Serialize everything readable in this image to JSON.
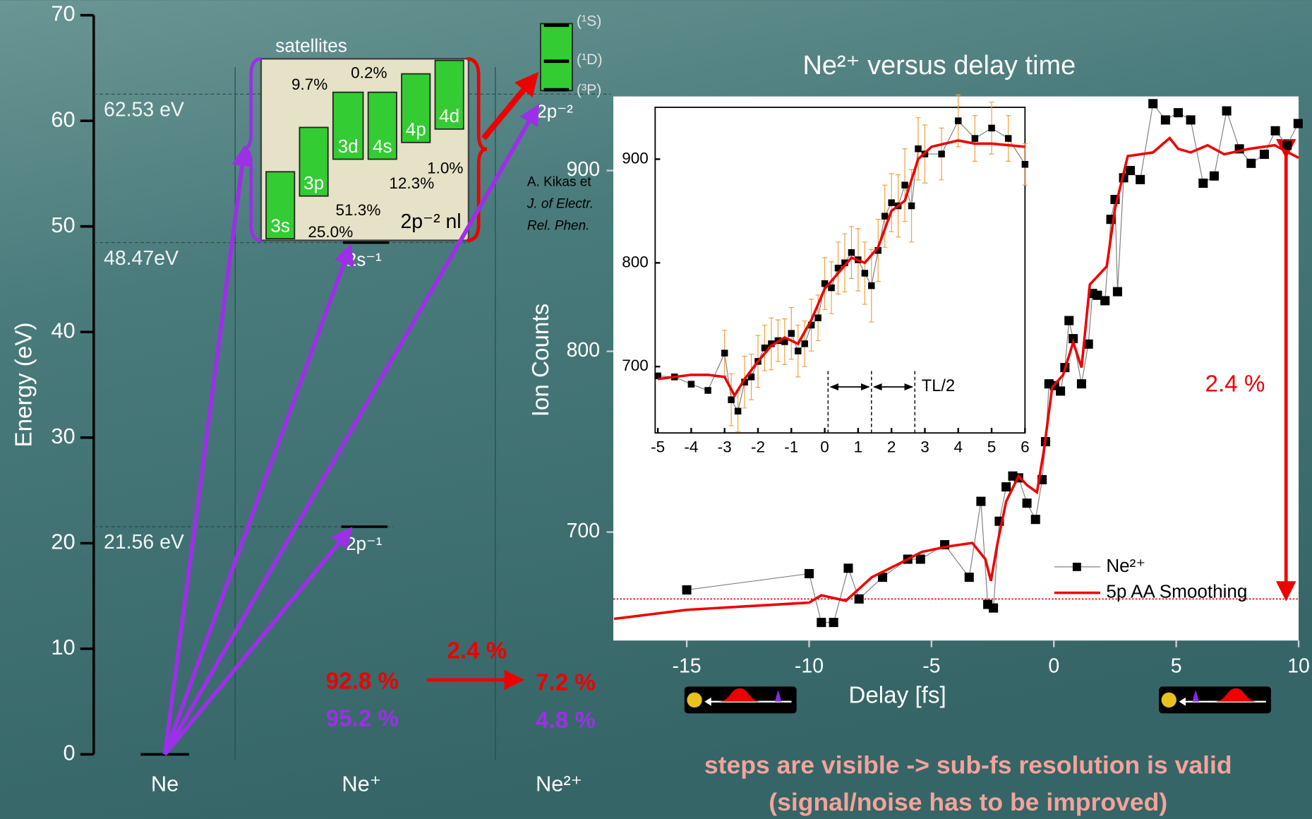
{
  "chart_data": [
    {
      "type": "levels",
      "ylabel": "Energy (eV)",
      "ylim": [
        0,
        70
      ],
      "yticks": [
        0,
        10,
        20,
        30,
        40,
        50,
        60,
        70
      ],
      "categories": [
        "Ne",
        "Ne⁺",
        "Ne²⁺"
      ],
      "levels": [
        {
          "value": 21.56,
          "label": "21.56 eV",
          "state": "2p⁻¹"
        },
        {
          "value": 48.47,
          "label": "48.47eV",
          "state": "2s⁻¹"
        },
        {
          "value": 62.53,
          "label": "62.53 eV",
          "state": "2p⁻²"
        }
      ],
      "satellites_title": "satellites",
      "satellites_config": "2p⁻² nl",
      "satellites": [
        {
          "name": "3s",
          "label": "25.0%"
        },
        {
          "name": "3p",
          "label": "51.3%"
        },
        {
          "name": "3d",
          "label": "9.7%"
        },
        {
          "name": "4s",
          "label": "0.2%"
        },
        {
          "name": "4p",
          "label": "12.3%"
        },
        {
          "name": "4d",
          "label": "1.0%"
        }
      ],
      "terms": [
        "(¹S)",
        "(¹D)",
        "(³P)"
      ],
      "annotations": [
        "92.8 %",
        "95.2 %",
        "2.4 %",
        "7.2 %",
        "4.8 %"
      ]
    },
    {
      "type": "line",
      "title": "Ne²⁺ versus delay time",
      "xlabel": "Delay [fs]",
      "ylabel": "Ion Counts",
      "xlim": [
        -18,
        10
      ],
      "xticks": [
        -15,
        -10,
        -5,
        0,
        5,
        10
      ],
      "ylim": [
        640,
        941
      ],
      "yticks": [
        700,
        800,
        900
      ],
      "baseline": 663,
      "annotation": "2.4 %",
      "reference": [
        "A. Kikas et",
        "J. of Electr.",
        "Rel. Phen."
      ],
      "legend": "lower right",
      "series": [
        {
          "name": "Ne²⁺",
          "color": "#000000",
          "line_color": "#808080",
          "x": [
            -15.0,
            -10.0,
            -9.5,
            -9.0,
            -8.4,
            -7.96,
            -7.0,
            -5.97,
            -5.45,
            -4.46,
            -3.46,
            -2.98,
            -2.7,
            -2.47,
            -2.23,
            -1.95,
            -1.68,
            -1.44,
            -1.1,
            -0.75,
            -0.48,
            -0.34,
            -0.2,
            0.03,
            0.27,
            0.45,
            0.62,
            0.79,
            1.13,
            1.41,
            1.58,
            1.78,
            2.09,
            2.33,
            2.5,
            2.6,
            2.85,
            3.12,
            3.53,
            4.05,
            4.56,
            5.08,
            5.59,
            6.1,
            6.55,
            7.06,
            7.58,
            8.06,
            8.6,
            9.05,
            9.53,
            9.98
          ],
          "values": [
            668,
            677,
            650,
            650,
            680,
            663,
            675,
            685,
            685,
            693,
            675,
            717,
            660,
            658,
            706,
            725,
            731,
            730,
            716,
            707,
            729,
            750,
            782,
            781,
            778,
            791,
            817,
            807,
            782,
            804,
            832,
            831,
            828,
            873,
            884,
            833,
            896,
            900,
            895,
            937,
            928,
            932,
            928,
            893,
            897,
            933,
            912,
            904,
            909,
            922,
            914,
            926
          ]
        },
        {
          "name": "5p AA Smoothing",
          "color": "#ee0000",
          "x": [
            -17.97,
            -15,
            -10,
            -9.5,
            -8.5,
            -7.44,
            -6.4,
            -5.4,
            -4.36,
            -3.33,
            -2.8,
            -2.57,
            -2.3,
            -1.95,
            -1.44,
            -1.1,
            -0.69,
            -0.41,
            -0.07,
            0.38,
            0.79,
            1.13,
            1.47,
            1.82,
            2.16,
            2.5,
            3.02,
            4.05,
            4.73,
            5.08,
            5.59,
            6.28,
            6.96,
            7.99,
            9.02,
            10.0
          ],
          "values": [
            652,
            657,
            661,
            665,
            662,
            675,
            682,
            689,
            692,
            694,
            685,
            673,
            694,
            717,
            731,
            726,
            722,
            745,
            780,
            787,
            805,
            791,
            837,
            842,
            847,
            879,
            908,
            910,
            918,
            912,
            910,
            914,
            909,
            912,
            914,
            907
          ]
        }
      ]
    },
    {
      "type": "line",
      "xlim": [
        -5.08,
        6
      ],
      "xticks": [
        -5,
        -4,
        -3,
        -2,
        -1,
        0,
        1,
        2,
        3,
        4,
        5,
        6
      ],
      "ylim": [
        636,
        950
      ],
      "yticks": [
        700,
        800,
        900
      ],
      "markers": [
        0.1,
        1.4,
        2.7
      ],
      "annotation": "TL/2",
      "series": [
        {
          "color": "#000000",
          "line_color": "#808080",
          "error_color": "#f0a040",
          "x": [
            -5.0,
            -4.5,
            -4.0,
            -3.5,
            -3.0,
            -2.8,
            -2.6,
            -2.4,
            -2.2,
            -2.0,
            -1.8,
            -1.6,
            -1.4,
            -1.2,
            -1.0,
            -0.8,
            -0.6,
            -0.4,
            -0.2,
            0.0,
            0.2,
            0.4,
            0.6,
            0.8,
            1.0,
            1.2,
            1.4,
            1.6,
            1.8,
            2.0,
            2.2,
            2.4,
            2.6,
            2.8,
            3.0,
            3.5,
            4.0,
            4.5,
            5.0,
            5.5,
            6.0
          ],
          "values": [
            691,
            690,
            683,
            677,
            713,
            668,
            657,
            685,
            690,
            705,
            718,
            722,
            725,
            724,
            732,
            715,
            722,
            740,
            747,
            780,
            776,
            795,
            800,
            810,
            803,
            790,
            778,
            812,
            845,
            858,
            855,
            875,
            855,
            910,
            905,
            905,
            937,
            920,
            930,
            920,
            895
          ],
          "errors": [
            null,
            null,
            null,
            null,
            22,
            25,
            20,
            25,
            22,
            25,
            22,
            25,
            20,
            22,
            25,
            25,
            22,
            25,
            22,
            25,
            25,
            25,
            28,
            25,
            30,
            30,
            35,
            30,
            30,
            28,
            30,
            35,
            35,
            30,
            28,
            25,
            25,
            22,
            25,
            22,
            20
          ]
        },
        {
          "color": "#ee0000",
          "x": [
            -5,
            -4,
            -3.5,
            -3.0,
            -2.7,
            -2.4,
            -2.0,
            -1.6,
            -1.2,
            -0.8,
            -0.4,
            0,
            0.4,
            0.8,
            1.2,
            1.6,
            2.0,
            2.4,
            2.8,
            3.2,
            4,
            4.5,
            5,
            6
          ],
          "values": [
            688,
            692,
            692,
            690,
            672,
            688,
            705,
            720,
            728,
            722,
            745,
            775,
            790,
            805,
            800,
            815,
            850,
            860,
            900,
            912,
            918,
            915,
            915,
            912
          ]
        }
      ]
    }
  ],
  "footer": [
    "steps are visible -> sub-fs resolution is valid",
    "(signal/noise has to be improved)"
  ]
}
